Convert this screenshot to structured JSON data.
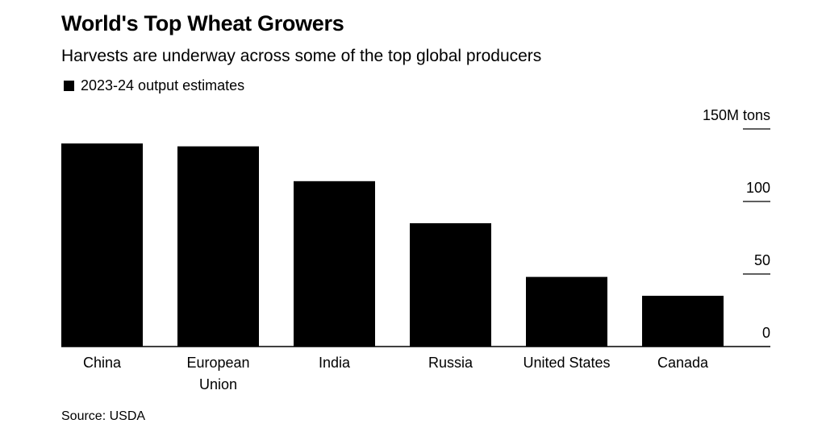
{
  "chart_data": {
    "type": "bar",
    "title": "World's Top Wheat Growers",
    "subtitle": "Harvests are underway across some of the top global producers",
    "legend": [
      {
        "name": "2023-24 output estimates",
        "color": "#000000"
      }
    ],
    "categories": [
      [
        "China"
      ],
      [
        "European",
        "Union"
      ],
      [
        "India"
      ],
      [
        "Russia"
      ],
      [
        "United States"
      ],
      [
        "Canada"
      ]
    ],
    "values": [
      140,
      138,
      114,
      85,
      48,
      35
    ],
    "ylim": [
      0,
      150
    ],
    "yticks": [
      {
        "value": 150,
        "label": "150M tons"
      },
      {
        "value": 100,
        "label": "100"
      },
      {
        "value": 50,
        "label": "50"
      },
      {
        "value": 0,
        "label": "0"
      }
    ],
    "bar_color": "#000000",
    "source": "Source: USDA"
  }
}
